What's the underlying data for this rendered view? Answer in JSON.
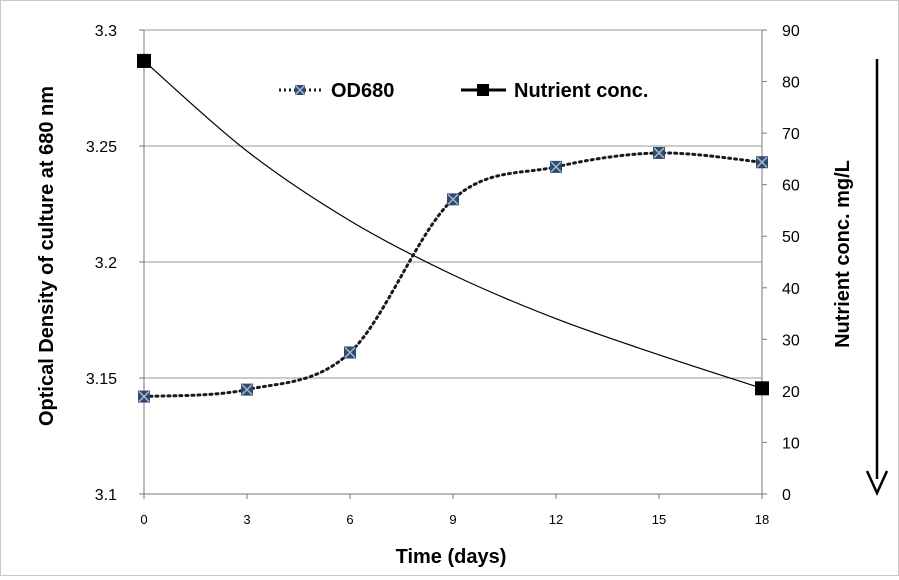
{
  "chart_data": {
    "type": "line",
    "xlabel": "Time (days)",
    "ylabel_left": "Optical Density of culture at 680 nm",
    "ylabel_right": "Nutrient conc. mg/L",
    "x_ticks": [
      "0",
      "3",
      "6",
      "9",
      "12",
      "15",
      "18"
    ],
    "y_left_ticks": [
      "3.1",
      "3.15",
      "3.2",
      "3.25",
      "3.3"
    ],
    "y_right_ticks": [
      "0",
      "10",
      "20",
      "30",
      "40",
      "50",
      "60",
      "70",
      "80",
      "90"
    ],
    "xlim": [
      0,
      18
    ],
    "ylim_left": [
      3.1,
      3.3
    ],
    "ylim_right": [
      0,
      90
    ],
    "grid": "horizontal",
    "legend_position": "top",
    "series": [
      {
        "name": "OD680",
        "axis": "left",
        "style": "dotted-smooth",
        "marker": "x-square",
        "color": "#1f3a5c",
        "x": [
          0,
          3,
          6,
          9,
          12,
          15,
          18
        ],
        "values": [
          3.142,
          3.145,
          3.161,
          3.227,
          3.241,
          3.247,
          3.243
        ]
      },
      {
        "name": "Nutrient conc.",
        "axis": "right",
        "style": "solid-smooth",
        "marker": "square",
        "color": "#000000",
        "x": [
          0,
          3,
          6,
          9,
          12,
          15,
          18
        ],
        "values": [
          84,
          66.5,
          53,
          42.5,
          34,
          27,
          20.5
        ]
      }
    ],
    "annotation": "downward-arrow"
  }
}
